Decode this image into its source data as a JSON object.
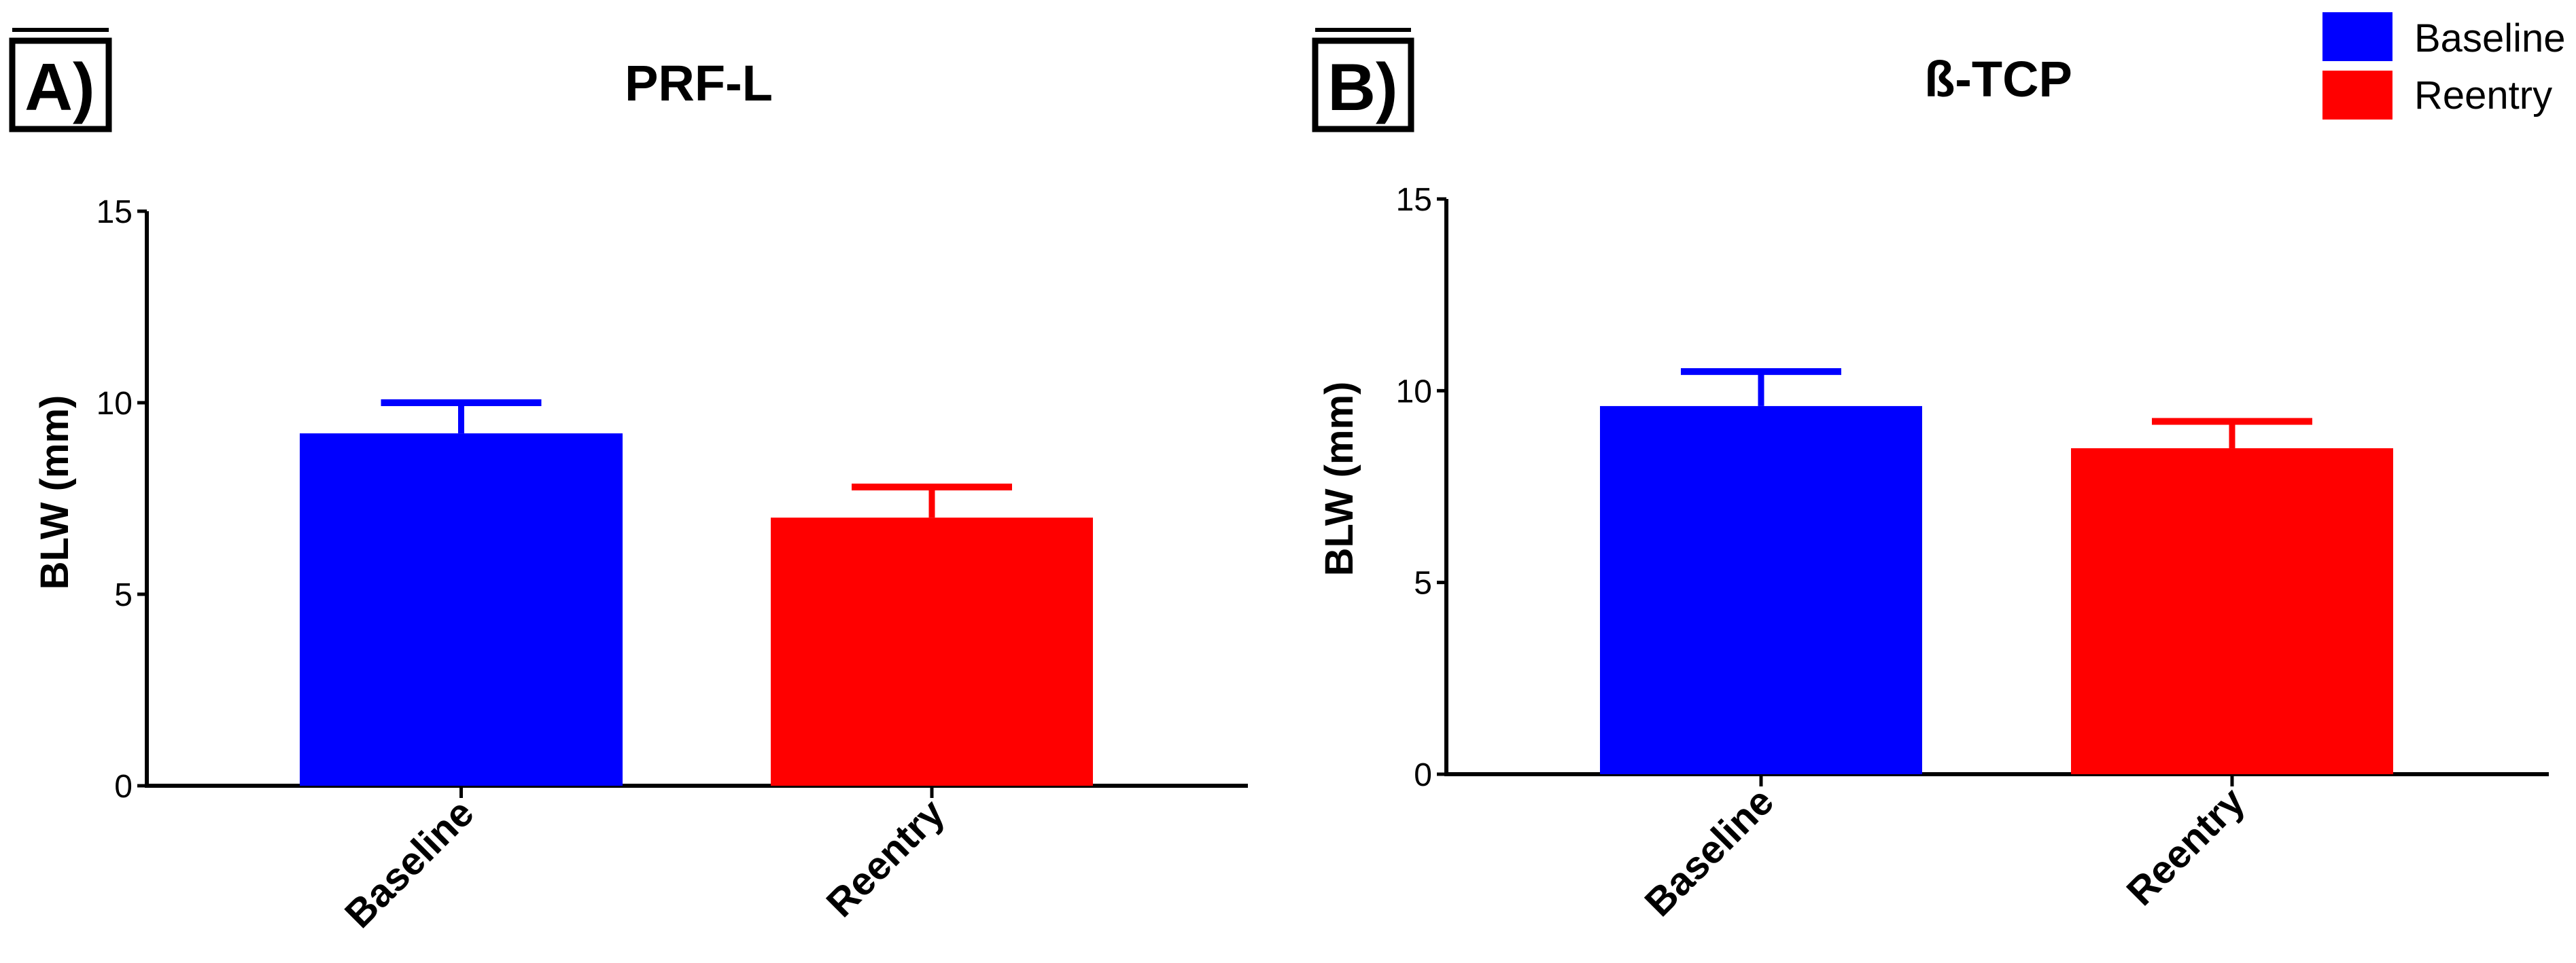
{
  "panels": [
    {
      "label": "A)",
      "title": "PRF-L",
      "ylabel": "BLW (mm)",
      "yticks": [
        "0",
        "5",
        "10",
        "15"
      ],
      "categories": [
        "Baseline",
        "Reentry"
      ]
    },
    {
      "label": "B)",
      "title": "ß-TCP",
      "ylabel": "BLW (mm)",
      "yticks": [
        "0",
        "5",
        "10",
        "15"
      ],
      "categories": [
        "Baseline",
        "Reentry"
      ]
    }
  ],
  "legend": {
    "placement": "top-right",
    "items": [
      {
        "label": "Baseline",
        "color": "#0000FF"
      },
      {
        "label": "Reentry",
        "color": "#FF0000"
      }
    ]
  },
  "chart_data": [
    {
      "type": "bar",
      "title": "PRF-L",
      "xlabel": "",
      "ylabel": "BLW (mm)",
      "categories": [
        "Baseline",
        "Reentry"
      ],
      "values": [
        9.2,
        7.0
      ],
      "error_upper": [
        10.0,
        7.8
      ],
      "colors": [
        "#0000FF",
        "#FF0000"
      ],
      "ylim": [
        0,
        15
      ],
      "grid": false
    },
    {
      "type": "bar",
      "title": "ß-TCP",
      "xlabel": "",
      "ylabel": "BLW (mm)",
      "categories": [
        "Baseline",
        "Reentry"
      ],
      "values": [
        9.6,
        8.5
      ],
      "error_upper": [
        10.5,
        9.2
      ],
      "colors": [
        "#0000FF",
        "#FF0000"
      ],
      "ylim": [
        0,
        15
      ],
      "grid": false
    }
  ]
}
